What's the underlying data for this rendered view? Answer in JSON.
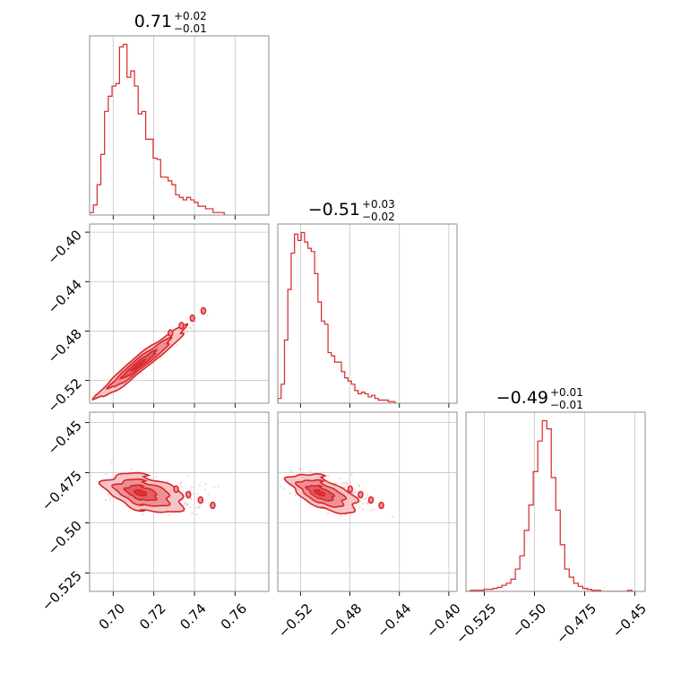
{
  "colors": {
    "accent": "#d62728",
    "fill_outer": "#f5c4c6",
    "fill_mid": "#ee9197",
    "fill_inner": "#e35d66",
    "scatter": "#f0b5b8",
    "frame": "#808080",
    "grid": "#c4c4c4"
  },
  "chart_data": [
    {
      "type": "histogram",
      "panel": "diag-0",
      "title": {
        "median": "0.71",
        "plus": "+0.02",
        "minus": "−0.01"
      },
      "bin_start": 0.6884,
      "bin_width": 0.00184,
      "counts": [
        2,
        8,
        24,
        48,
        82,
        94,
        102,
        104,
        133,
        135,
        109,
        114,
        102,
        80,
        82,
        60,
        60,
        45,
        44,
        30,
        30,
        27,
        24,
        16,
        14,
        12,
        14,
        12,
        10,
        7,
        7,
        5,
        5,
        2,
        2,
        2
      ],
      "xlim": [
        0.6884,
        0.7766
      ],
      "xticks": [
        0.7,
        0.72,
        0.74,
        0.76
      ],
      "grid": true
    },
    {
      "type": "histogram",
      "panel": "diag-1",
      "title": {
        "median": "−0.51",
        "plus": "+0.03",
        "minus": "−0.02"
      },
      "bin_start": -0.5384,
      "bin_width": 0.00271,
      "counts": [
        3,
        12,
        40,
        72,
        95,
        107,
        103,
        108,
        102,
        98,
        96,
        82,
        64,
        52,
        50,
        32,
        30,
        26,
        26,
        20,
        16,
        14,
        12,
        8,
        6,
        7,
        6,
        4,
        5,
        3,
        2,
        2,
        2,
        1,
        1
      ],
      "xlim": [
        -0.5384,
        -0.3934
      ],
      "xticks": [
        -0.52,
        -0.48,
        -0.44,
        -0.4
      ],
      "grid": true
    },
    {
      "type": "histogram",
      "panel": "diag-2",
      "title": {
        "median": "−0.49",
        "plus": "+0.01",
        "minus": "−0.01"
      },
      "bin_start": -0.5342,
      "bin_width": 0.00224,
      "counts": [
        0,
        1,
        1,
        1,
        2,
        2,
        3,
        4,
        6,
        8,
        12,
        22,
        35,
        60,
        85,
        118,
        148,
        168,
        160,
        112,
        80,
        46,
        22,
        14,
        8,
        5,
        3,
        2,
        1,
        1,
        0,
        0,
        0,
        0,
        0,
        0,
        1
      ],
      "xlim": [
        -0.5342,
        -0.4448
      ],
      "xticks": [
        -0.525,
        -0.5,
        -0.475,
        -0.45
      ],
      "grid": true
    },
    {
      "type": "contour-scatter",
      "panel": "pair-1-0",
      "x_param": 0,
      "y_param": 1,
      "xlim": [
        0.6884,
        0.7766
      ],
      "ylim": [
        -0.5384,
        -0.3934
      ],
      "xticks": [
        0.7,
        0.72,
        0.74,
        0.76
      ],
      "yticks": [
        -0.4,
        -0.44,
        -0.48,
        -0.52
      ],
      "center": [
        0.712,
        -0.508
      ],
      "spread": [
        0.009,
        0.012
      ],
      "correlation": 0.96,
      "grid": true
    },
    {
      "type": "contour-scatter",
      "panel": "pair-2-0",
      "x_param": 0,
      "y_param": 2,
      "xlim": [
        0.6884,
        0.7766
      ],
      "ylim": [
        -0.5342,
        -0.4448
      ],
      "xticks": [
        0.7,
        0.72,
        0.74,
        0.76
      ],
      "yticks": [
        -0.45,
        -0.475,
        -0.5,
        -0.525
      ],
      "center": [
        0.713,
        -0.485
      ],
      "spread": [
        0.01,
        0.0045
      ],
      "correlation": -0.45,
      "grid": true
    },
    {
      "type": "contour-scatter",
      "panel": "pair-2-1",
      "x_param": 1,
      "y_param": 2,
      "xlim": [
        -0.5384,
        -0.3934
      ],
      "ylim": [
        -0.5342,
        -0.4448
      ],
      "xticks": [
        -0.52,
        -0.48,
        -0.44,
        -0.4
      ],
      "yticks": [
        -0.45,
        -0.475,
        -0.5,
        -0.525
      ],
      "center": [
        -0.505,
        -0.485
      ],
      "spread": [
        0.014,
        0.0045
      ],
      "correlation": -0.62,
      "grid": true
    }
  ]
}
